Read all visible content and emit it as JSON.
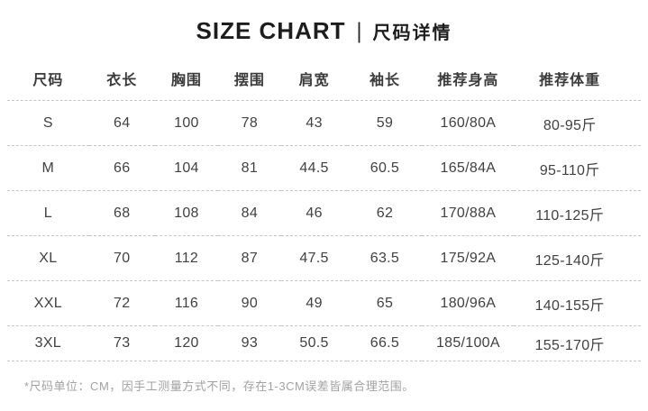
{
  "header": {
    "title_en": "SIZE CHART",
    "divider": "|",
    "title_zh": "尺码详情"
  },
  "chart_data": {
    "type": "table",
    "title": "SIZE CHART | 尺码详情",
    "columns": [
      "尺码",
      "衣长",
      "胸围",
      "摆围",
      "肩宽",
      "袖长",
      "推荐身高",
      "推荐体重"
    ],
    "rows": [
      [
        "S",
        "64",
        "100",
        "78",
        "43",
        "59",
        "160/80A",
        "80-95斤"
      ],
      [
        "M",
        "66",
        "104",
        "81",
        "44.5",
        "60.5",
        "165/84A",
        "95-110斤"
      ],
      [
        "L",
        "68",
        "108",
        "84",
        "46",
        "62",
        "170/88A",
        "110-125斤"
      ],
      [
        "XL",
        "70",
        "112",
        "87",
        "47.5",
        "63.5",
        "175/92A",
        "125-140斤"
      ],
      [
        "XXL",
        "72",
        "116",
        "90",
        "49",
        "65",
        "180/96A",
        "140-155斤"
      ],
      [
        "3XL",
        "73",
        "120",
        "93",
        "50.5",
        "66.5",
        "185/100A",
        "155-170斤"
      ]
    ]
  },
  "footer": {
    "note": "*尺码单位：CM，因手工测量方式不同，存在1-3CM误差皆属合理范围。"
  },
  "colors": {
    "title_text": "#1d1d1d",
    "body_text": "#414141",
    "note_text": "#a2a2a2",
    "dashed_divider": "#c6c6c6",
    "background": "#ffffff"
  }
}
